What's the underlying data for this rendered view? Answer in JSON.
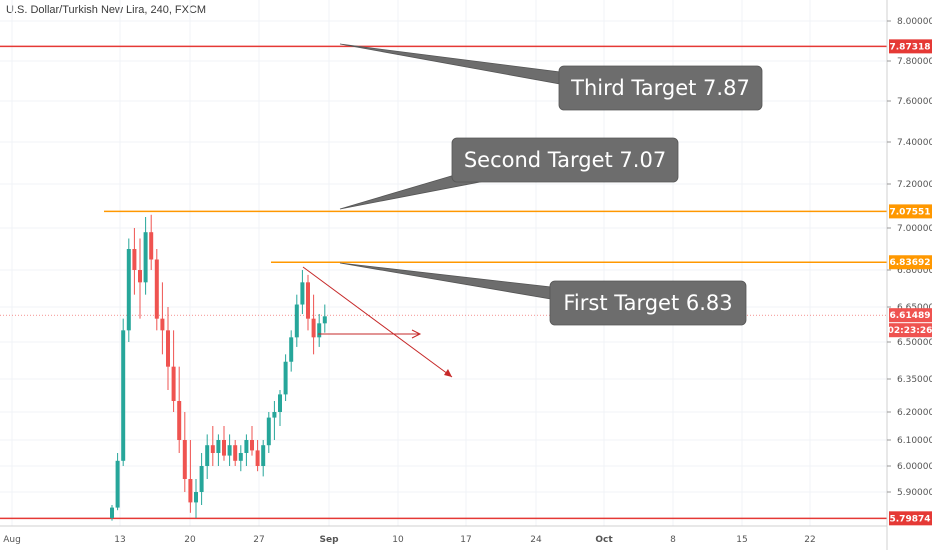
{
  "header": {
    "title": "U.S. Dollar/Turkish New Lira, 240, FXCM"
  },
  "colors": {
    "up": "#26a69a",
    "down": "#ef5350",
    "red_level": "#e53935",
    "orange_level": "#ff9800",
    "callout_bg": "#6d6d6d"
  },
  "chart_data": {
    "type": "candlestick",
    "y_axis": {
      "ticks": [
        "8.00000",
        "7.80000",
        "7.60000",
        "7.40000",
        "7.20000",
        "7.00000",
        "6.80000",
        "6.65000",
        "6.50000",
        "6.35000",
        "6.20000",
        "6.10000",
        "6.00000",
        "5.90000"
      ]
    },
    "x_axis": {
      "ticks": [
        "Aug",
        "13",
        "20",
        "27",
        "Sep",
        "10",
        "17",
        "24",
        "Oct",
        "8",
        "15",
        "22"
      ]
    },
    "levels": [
      {
        "name": "third",
        "value": 7.87318,
        "label": "7.87318",
        "color": "red"
      },
      {
        "name": "second",
        "value": 7.07551,
        "label": "7.07551",
        "color": "orange"
      },
      {
        "name": "first",
        "value": 6.83692,
        "label": "6.83692",
        "color": "orange"
      },
      {
        "name": "support",
        "value": 5.79874,
        "label": "5.79874",
        "color": "red"
      }
    ],
    "current_price": {
      "value": 6.61489,
      "label": "6.61489",
      "countdown": "02:23:26"
    },
    "annotations": [
      {
        "text": "Third Target 7.87"
      },
      {
        "text": "Second Target 7.07"
      },
      {
        "text": "First Target 6.83"
      }
    ],
    "candles_ohlc": [
      [
        5.8,
        5.85,
        5.79,
        5.84
      ],
      [
        5.84,
        6.05,
        5.83,
        6.02
      ],
      [
        6.02,
        6.6,
        6.0,
        6.55
      ],
      [
        6.55,
        6.95,
        6.5,
        6.9
      ],
      [
        6.9,
        7.0,
        6.7,
        6.8
      ],
      [
        6.8,
        6.95,
        6.6,
        6.75
      ],
      [
        6.75,
        7.05,
        6.7,
        6.98
      ],
      [
        6.98,
        7.06,
        6.8,
        6.85
      ],
      [
        6.85,
        6.9,
        6.55,
        6.6
      ],
      [
        6.6,
        6.75,
        6.45,
        6.55
      ],
      [
        6.55,
        6.65,
        6.3,
        6.4
      ],
      [
        6.4,
        6.55,
        6.2,
        6.25
      ],
      [
        6.25,
        6.4,
        6.05,
        6.1
      ],
      [
        6.1,
        6.2,
        5.9,
        5.95
      ],
      [
        5.95,
        6.1,
        5.82,
        5.86
      ],
      [
        5.86,
        5.95,
        5.8,
        5.9
      ],
      [
        5.9,
        6.05,
        5.85,
        6.0
      ],
      [
        6.0,
        6.12,
        5.95,
        6.08
      ],
      [
        6.08,
        6.15,
        6.0,
        6.05
      ],
      [
        6.05,
        6.12,
        6.0,
        6.1
      ],
      [
        6.1,
        6.15,
        6.02,
        6.04
      ],
      [
        6.04,
        6.12,
        6.0,
        6.08
      ],
      [
        6.08,
        6.1,
        6.0,
        6.02
      ],
      [
        6.02,
        6.08,
        5.98,
        6.05
      ],
      [
        6.05,
        6.12,
        6.0,
        6.1
      ],
      [
        6.1,
        6.15,
        6.04,
        6.06
      ],
      [
        6.06,
        6.1,
        5.98,
        6.0
      ],
      [
        6.0,
        6.1,
        5.96,
        6.08
      ],
      [
        6.08,
        6.2,
        6.05,
        6.18
      ],
      [
        6.18,
        6.25,
        6.1,
        6.2
      ],
      [
        6.2,
        6.3,
        6.15,
        6.28
      ],
      [
        6.28,
        6.45,
        6.25,
        6.42
      ],
      [
        6.42,
        6.55,
        6.38,
        6.52
      ],
      [
        6.52,
        6.7,
        6.48,
        6.66
      ],
      [
        6.66,
        6.8,
        6.62,
        6.75
      ],
      [
        6.75,
        6.78,
        6.55,
        6.6
      ],
      [
        6.6,
        6.7,
        6.45,
        6.52
      ],
      [
        6.52,
        6.62,
        6.48,
        6.58
      ],
      [
        6.58,
        6.66,
        6.54,
        6.61
      ]
    ]
  }
}
